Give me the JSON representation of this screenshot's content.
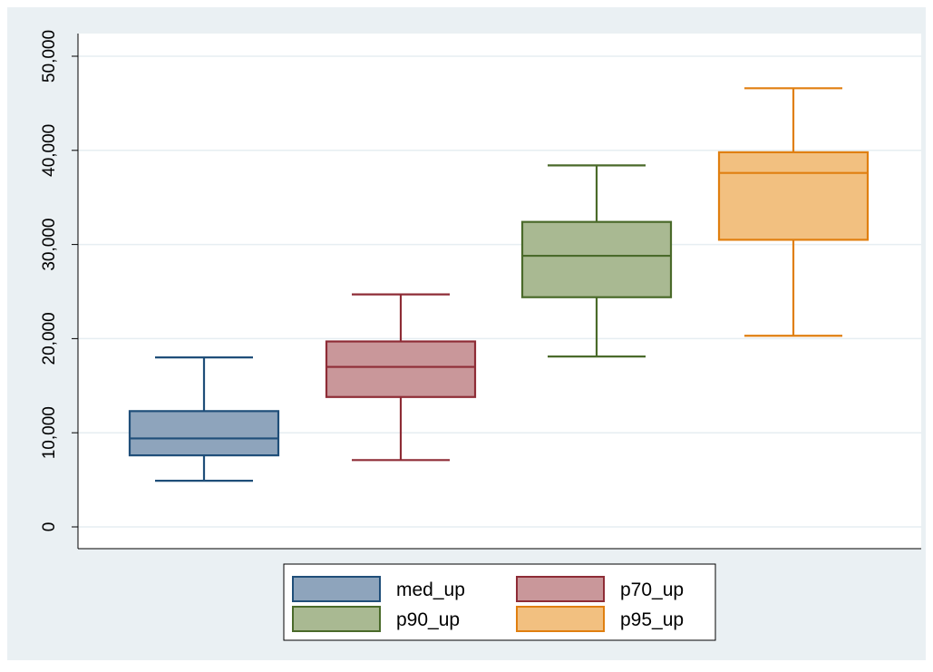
{
  "chart_data": {
    "type": "box",
    "title": "",
    "xlabel": "",
    "ylabel": "",
    "ylim": [
      0,
      52000
    ],
    "y_ticks": [
      0,
      10000,
      20000,
      30000,
      40000,
      50000
    ],
    "y_tick_labels": [
      "0",
      "10,000",
      "20,000",
      "30,000",
      "40,000",
      "50,000"
    ],
    "grid": true,
    "legend_position": "bottom",
    "series": [
      {
        "name": "med_up",
        "whisker_low": 4900,
        "q1": 7600,
        "median": 9400,
        "q3": 12300,
        "whisker_high": 18000,
        "color": "#8EA4BC",
        "stroke": "#1F4E79"
      },
      {
        "name": "p70_up",
        "whisker_low": 7100,
        "q1": 13800,
        "median": 17000,
        "q3": 19700,
        "whisker_high": 24700,
        "color": "#C9979A",
        "stroke": "#8E2C36"
      },
      {
        "name": "p90_up",
        "whisker_low": 18100,
        "q1": 24400,
        "median": 28800,
        "q3": 32400,
        "whisker_high": 38400,
        "color": "#A9B992",
        "stroke": "#4A6A2A"
      },
      {
        "name": "p95_up",
        "whisker_low": 20300,
        "q1": 30500,
        "median": 37600,
        "q3": 39800,
        "whisker_high": 46600,
        "color": "#F2C080",
        "stroke": "#E07F10"
      }
    ]
  },
  "colors": {
    "outer_background": "#EAF0F3",
    "plot_background": "#FFFFFF",
    "grid": "#E6EEF2"
  }
}
